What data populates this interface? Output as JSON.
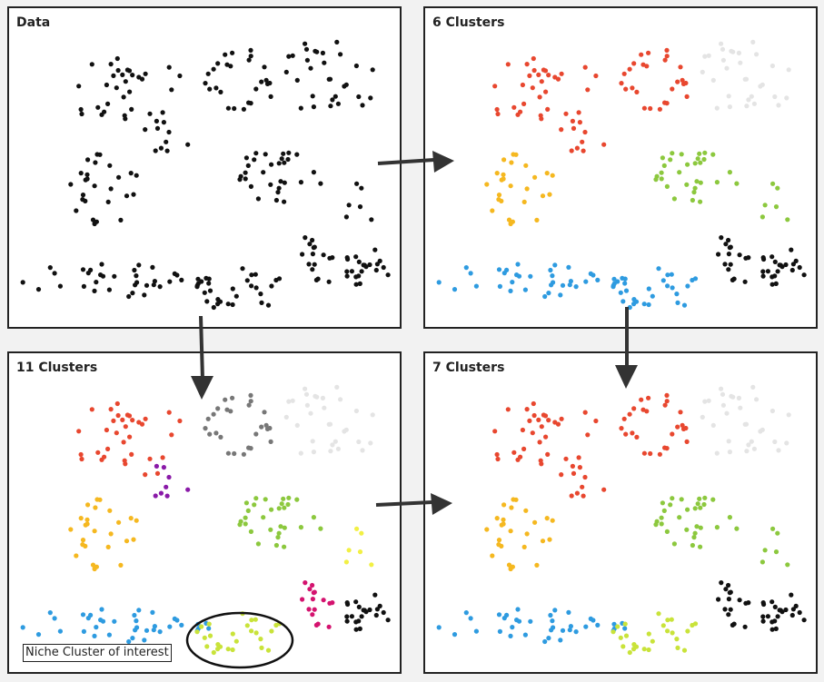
{
  "panels": [
    {
      "title": "Data"
    },
    {
      "title": "6 Clusters"
    },
    {
      "title": "11 Clusters"
    },
    {
      "title": "7 Clusters"
    }
  ],
  "callout": {
    "label": "Niche Cluster of interest"
  },
  "colors": {
    "data": "#111111",
    "red": "#e8472f",
    "lightgray": "#e4e4e4",
    "yellow": "#f5b820",
    "green": "#8cc83e",
    "blue": "#2e9be0",
    "black": "#111111",
    "gray": "#777777",
    "purple": "#8a1aa8",
    "lightyellow": "#f2f044",
    "magenta": "#d4136f",
    "lime": "#c9e33a"
  }
}
